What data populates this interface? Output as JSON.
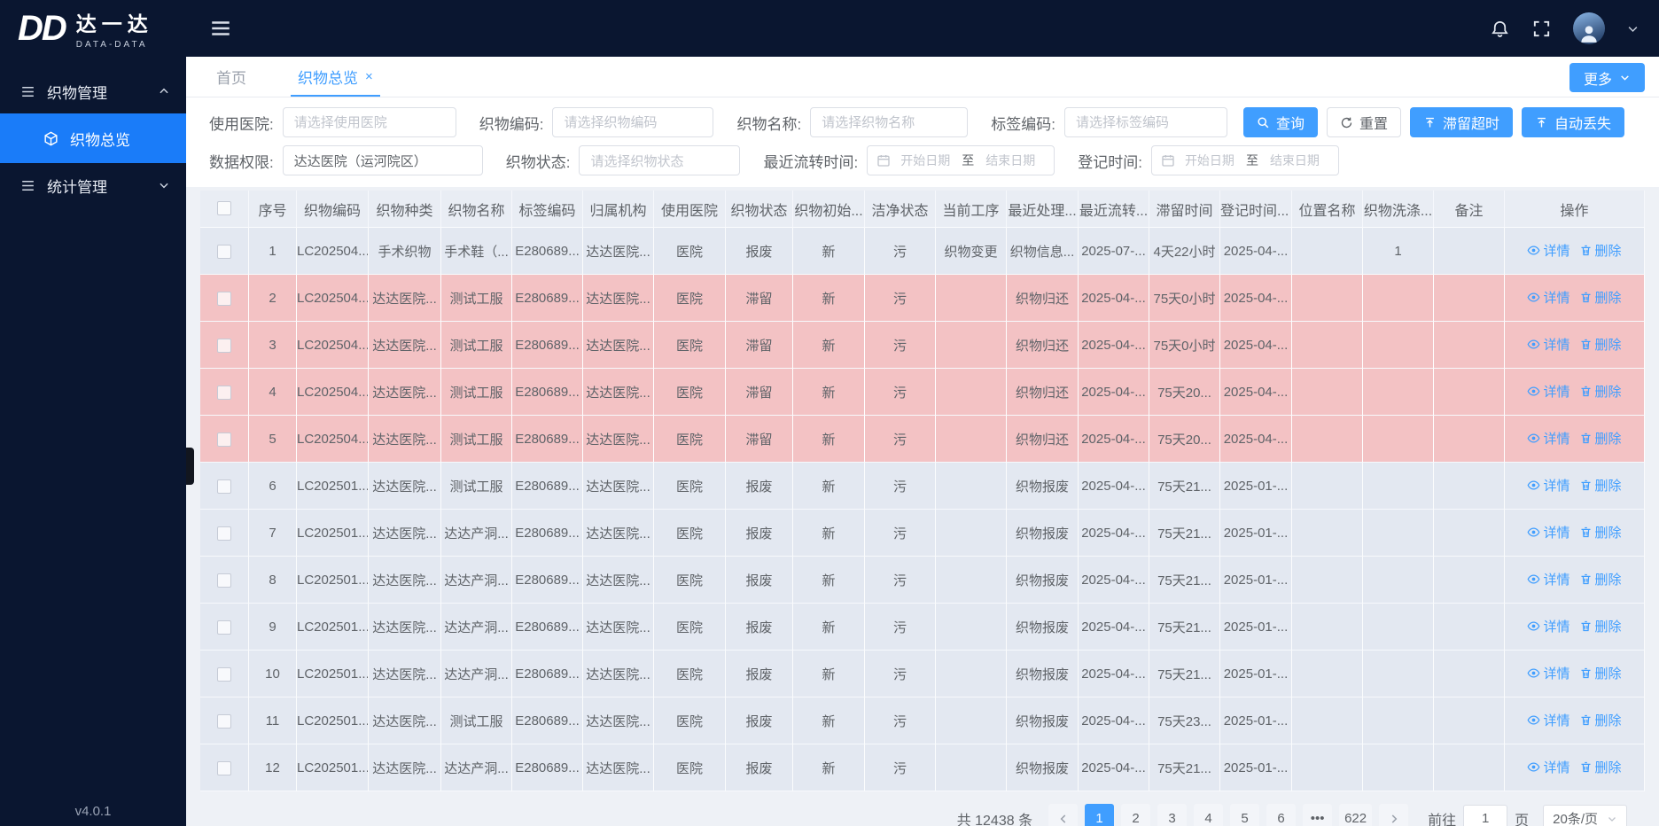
{
  "brand": {
    "logo": "DD",
    "name_cn": "达一达",
    "name_en": "DATA-DATA",
    "version": "v4.0.1"
  },
  "sidebar": {
    "items": [
      {
        "label": "织物管理",
        "state": "expanded"
      },
      {
        "label": "织物总览",
        "state": "active"
      },
      {
        "label": "统计管理",
        "state": "collapsed"
      }
    ]
  },
  "icons": [
    "menu-list-icon",
    "cube-icon",
    "chevron-up-icon",
    "chevron-down-icon",
    "hamburger-icon",
    "bell-icon",
    "fullscreen-icon",
    "avatar",
    "search-icon",
    "refresh-icon",
    "export-top-icon",
    "calendar-icon",
    "eye-icon",
    "trash-icon",
    "sort-caret-icon",
    "close-icon",
    "prev-icon",
    "next-icon"
  ],
  "tabs": {
    "items": [
      {
        "label": "首页",
        "active": false,
        "closable": false
      },
      {
        "label": "织物总览",
        "active": true,
        "closable": true
      }
    ],
    "more_label": "更多"
  },
  "filters": {
    "row1": [
      {
        "label": "使用医院:",
        "placeholder": "请选择使用医院"
      },
      {
        "label": "织物编码:",
        "placeholder": "请选择织物编码"
      },
      {
        "label": "织物名称:",
        "placeholder": "请选择织物名称"
      },
      {
        "label": "标签编码:",
        "placeholder": "请选择标签编码"
      }
    ],
    "row2": {
      "perm_label": "数据权限:",
      "perm_value": "达达医院（运河院区）",
      "status_label": "织物状态:",
      "status_placeholder": "请选择织物状态",
      "flow_label": "最近流转时间:",
      "reg_label": "登记时间:",
      "date_start": "开始日期",
      "date_to": "至",
      "date_end": "结束日期"
    },
    "buttons": {
      "search": "查询",
      "reset": "重置",
      "stranded": "滞留超时",
      "autolost": "自动丢失"
    }
  },
  "table": {
    "columns": [
      "序号",
      "织物编码",
      "织物种类",
      "织物名称",
      "标签编码",
      "归属机构",
      "使用医院",
      "织物状态",
      "织物初始...",
      "洁净状态",
      "当前工序",
      "最近处理...",
      "最近流转...",
      "滞留时间",
      "登记时间...",
      "位置名称",
      "织物洗涤...",
      "备注",
      "操作"
    ],
    "sortable_column_index": 14,
    "actions": {
      "detail": "详情",
      "delete": "删除"
    },
    "rows": [
      {
        "highlight": false,
        "cells": [
          "1",
          "LC202504...",
          "手术织物",
          "手术鞋（...",
          "E280689...",
          "达达医院...",
          "医院",
          "报废",
          "新",
          "污",
          "织物变更",
          "织物信息...",
          "2025-07-...",
          "4天22小时",
          "2025-04-...",
          "",
          "1",
          ""
        ]
      },
      {
        "highlight": true,
        "cells": [
          "2",
          "LC202504...",
          "达达医院...",
          "测试工服",
          "E280689...",
          "达达医院...",
          "医院",
          "滞留",
          "新",
          "污",
          "",
          "织物归还",
          "2025-04-...",
          "75天0小时",
          "2025-04-...",
          "",
          "",
          ""
        ]
      },
      {
        "highlight": true,
        "cells": [
          "3",
          "LC202504...",
          "达达医院...",
          "测试工服",
          "E280689...",
          "达达医院...",
          "医院",
          "滞留",
          "新",
          "污",
          "",
          "织物归还",
          "2025-04-...",
          "75天0小时",
          "2025-04-...",
          "",
          "",
          ""
        ]
      },
      {
        "highlight": true,
        "cells": [
          "4",
          "LC202504...",
          "达达医院...",
          "测试工服",
          "E280689...",
          "达达医院...",
          "医院",
          "滞留",
          "新",
          "污",
          "",
          "织物归还",
          "2025-04-...",
          "75天20...",
          "2025-04-...",
          "",
          "",
          ""
        ]
      },
      {
        "highlight": true,
        "cells": [
          "5",
          "LC202504...",
          "达达医院...",
          "测试工服",
          "E280689...",
          "达达医院...",
          "医院",
          "滞留",
          "新",
          "污",
          "",
          "织物归还",
          "2025-04-...",
          "75天20...",
          "2025-04-...",
          "",
          "",
          ""
        ]
      },
      {
        "highlight": false,
        "cells": [
          "6",
          "LC202501...",
          "达达医院...",
          "测试工服",
          "E280689...",
          "达达医院...",
          "医院",
          "报废",
          "新",
          "污",
          "",
          "织物报废",
          "2025-04-...",
          "75天21...",
          "2025-01-...",
          "",
          "",
          ""
        ]
      },
      {
        "highlight": false,
        "cells": [
          "7",
          "LC202501...",
          "达达医院...",
          "达达产洞...",
          "E280689...",
          "达达医院...",
          "医院",
          "报废",
          "新",
          "污",
          "",
          "织物报废",
          "2025-04-...",
          "75天21...",
          "2025-01-...",
          "",
          "",
          ""
        ]
      },
      {
        "highlight": false,
        "cells": [
          "8",
          "LC202501...",
          "达达医院...",
          "达达产洞...",
          "E280689...",
          "达达医院...",
          "医院",
          "报废",
          "新",
          "污",
          "",
          "织物报废",
          "2025-04-...",
          "75天21...",
          "2025-01-...",
          "",
          "",
          ""
        ]
      },
      {
        "highlight": false,
        "cells": [
          "9",
          "LC202501...",
          "达达医院...",
          "达达产洞...",
          "E280689...",
          "达达医院...",
          "医院",
          "报废",
          "新",
          "污",
          "",
          "织物报废",
          "2025-04-...",
          "75天21...",
          "2025-01-...",
          "",
          "",
          ""
        ]
      },
      {
        "highlight": false,
        "cells": [
          "10",
          "LC202501...",
          "达达医院...",
          "达达产洞...",
          "E280689...",
          "达达医院...",
          "医院",
          "报废",
          "新",
          "污",
          "",
          "织物报废",
          "2025-04-...",
          "75天21...",
          "2025-01-...",
          "",
          "",
          ""
        ]
      },
      {
        "highlight": false,
        "cells": [
          "11",
          "LC202501...",
          "达达医院...",
          "测试工服",
          "E280689...",
          "达达医院...",
          "医院",
          "报废",
          "新",
          "污",
          "",
          "织物报废",
          "2025-04-...",
          "75天23...",
          "2025-01-...",
          "",
          "",
          ""
        ]
      },
      {
        "highlight": false,
        "cells": [
          "12",
          "LC202501...",
          "达达医院...",
          "达达产洞...",
          "E280689...",
          "达达医院...",
          "医院",
          "报废",
          "新",
          "污",
          "",
          "织物报废",
          "2025-04-...",
          "75天21...",
          "2025-01-...",
          "",
          "",
          ""
        ]
      }
    ]
  },
  "pagination": {
    "total": "共 12438 条",
    "pages": [
      "1",
      "2",
      "3",
      "4",
      "5",
      "6",
      "...",
      "622"
    ],
    "active_page": "1",
    "goto_label": "前往",
    "goto_value": "1",
    "goto_suffix": "页",
    "page_size": "20条/页"
  },
  "colors": {
    "accent": "#409eff",
    "sidebar": "#0a1630",
    "active_menu": "#1a7cf9",
    "row": "#e3e8f1",
    "row_highlight": "#f3c2c4"
  }
}
